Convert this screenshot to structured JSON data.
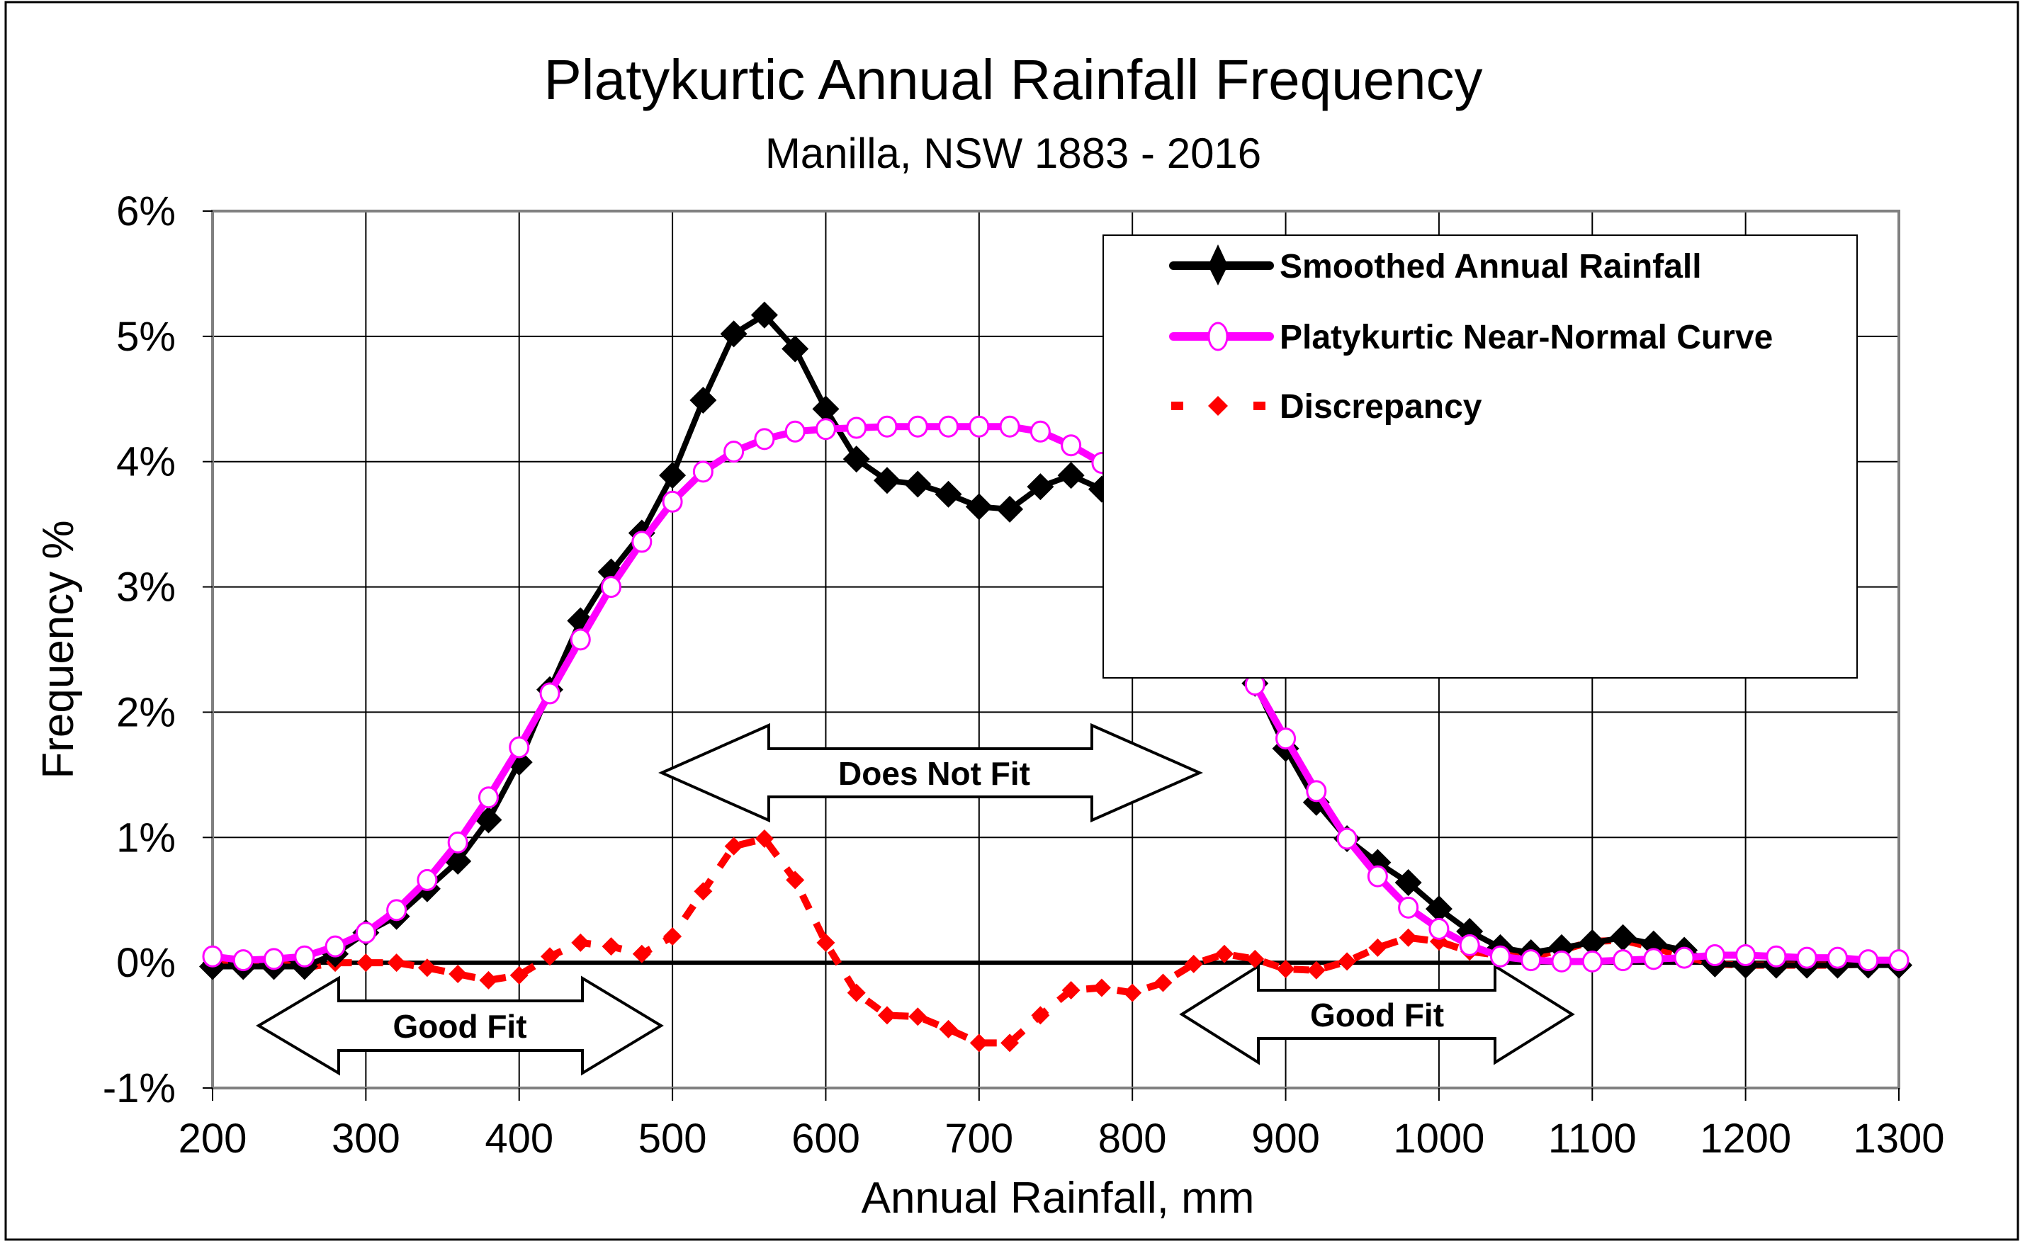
{
  "chart_data": {
    "type": "line",
    "title": "Platykurtic Annual Rainfall Frequency",
    "subtitle": "Manilla, NSW 1883 - 2016",
    "xlabel": "Annual Rainfall, mm",
    "ylabel": "Frequency %",
    "xlim": [
      200,
      1300
    ],
    "ylim": [
      -1,
      6
    ],
    "xticks": [
      200,
      300,
      400,
      500,
      600,
      700,
      800,
      900,
      1000,
      1100,
      1200,
      1300
    ],
    "xtick_labels": [
      "200",
      "300",
      "400",
      "500",
      "600",
      "700",
      "800",
      "900",
      "1000",
      "1100",
      "1200",
      "1300"
    ],
    "yticks": [
      -1,
      0,
      1,
      2,
      3,
      4,
      5,
      6
    ],
    "ytick_labels": [
      "-1%",
      "0%",
      "1%",
      "2%",
      "3%",
      "4%",
      "5%",
      "6%"
    ],
    "grid": true,
    "legend_position": "top-right",
    "x": [
      200,
      220,
      240,
      260,
      280,
      300,
      320,
      340,
      360,
      380,
      400,
      420,
      440,
      460,
      480,
      500,
      520,
      540,
      560,
      580,
      600,
      620,
      640,
      660,
      680,
      700,
      720,
      740,
      760,
      780,
      800,
      820,
      840,
      860,
      880,
      900,
      920,
      940,
      960,
      980,
      1000,
      1020,
      1040,
      1060,
      1080,
      1100,
      1120,
      1140,
      1160,
      1180,
      1200,
      1220,
      1240,
      1260,
      1280,
      1300
    ],
    "series": [
      {
        "name": "Smoothed Annual Rainfall",
        "color": "#000000",
        "marker": "diamond",
        "line_style": "solid",
        "values": [
          -0.03,
          -0.03,
          -0.03,
          -0.03,
          0.07,
          0.24,
          0.37,
          0.59,
          0.81,
          1.14,
          1.6,
          2.18,
          2.73,
          3.12,
          3.43,
          3.89,
          4.49,
          5.02,
          5.17,
          4.9,
          4.42,
          4.02,
          3.85,
          3.82,
          3.74,
          3.64,
          3.62,
          3.8,
          3.89,
          3.78,
          3.51,
          3.25,
          3.07,
          2.72,
          2.23,
          1.71,
          1.28,
          0.99,
          0.8,
          0.64,
          0.43,
          0.25,
          0.12,
          0.08,
          0.12,
          0.16,
          0.2,
          0.15,
          0.1,
          -0.01,
          -0.02,
          -0.02,
          -0.02,
          -0.02,
          -0.02,
          -0.02
        ]
      },
      {
        "name": "Platykurtic Near-Normal Curve",
        "color": "#ff00ff",
        "marker": "open-circle",
        "line_style": "solid",
        "values": [
          0.05,
          0.02,
          0.03,
          0.05,
          0.13,
          0.24,
          0.42,
          0.66,
          0.96,
          1.32,
          1.72,
          2.15,
          2.58,
          3.0,
          3.36,
          3.68,
          3.92,
          4.08,
          4.18,
          4.24,
          4.26,
          4.27,
          4.28,
          4.28,
          4.28,
          4.28,
          4.28,
          4.24,
          4.13,
          3.99,
          3.75,
          3.45,
          3.09,
          2.65,
          2.22,
          1.79,
          1.37,
          0.99,
          0.69,
          0.44,
          0.27,
          0.14,
          0.05,
          0.02,
          0.01,
          0.01,
          0.02,
          0.03,
          0.04,
          0.06,
          0.06,
          0.05,
          0.04,
          0.04,
          0.02,
          0.02
        ]
      },
      {
        "name": "Discrepancy",
        "color": "#ff0000",
        "marker": "diamond",
        "line_style": "dashed",
        "values": [
          0.0,
          0.02,
          0.0,
          -0.04,
          0.0,
          0.0,
          0.0,
          -0.04,
          -0.09,
          -0.14,
          -0.1,
          0.05,
          0.16,
          0.13,
          0.07,
          0.21,
          0.57,
          0.93,
          0.99,
          0.66,
          0.16,
          -0.24,
          -0.42,
          -0.43,
          -0.53,
          -0.64,
          -0.64,
          -0.42,
          -0.22,
          -0.2,
          -0.24,
          -0.16,
          -0.01,
          0.07,
          0.03,
          -0.05,
          -0.06,
          0.01,
          0.12,
          0.2,
          0.17,
          0.09,
          0.06,
          0.05,
          0.1,
          0.17,
          0.18,
          0.12,
          0.05,
          -0.01,
          -0.02,
          -0.02,
          -0.02,
          -0.02,
          -0.01,
          -0.01
        ]
      }
    ],
    "annotations": [
      {
        "text": "Does Not Fit",
        "shape": "double-arrow",
        "x_range": [
          500,
          850
        ],
        "y_center": 1.4
      },
      {
        "text": "Good Fit",
        "shape": "double-arrow",
        "x_range": [
          230,
          490
        ],
        "y_center": -0.5
      },
      {
        "text": "Good Fit",
        "shape": "double-arrow",
        "x_range": [
          840,
          1110
        ],
        "y_center": -0.4
      }
    ]
  }
}
